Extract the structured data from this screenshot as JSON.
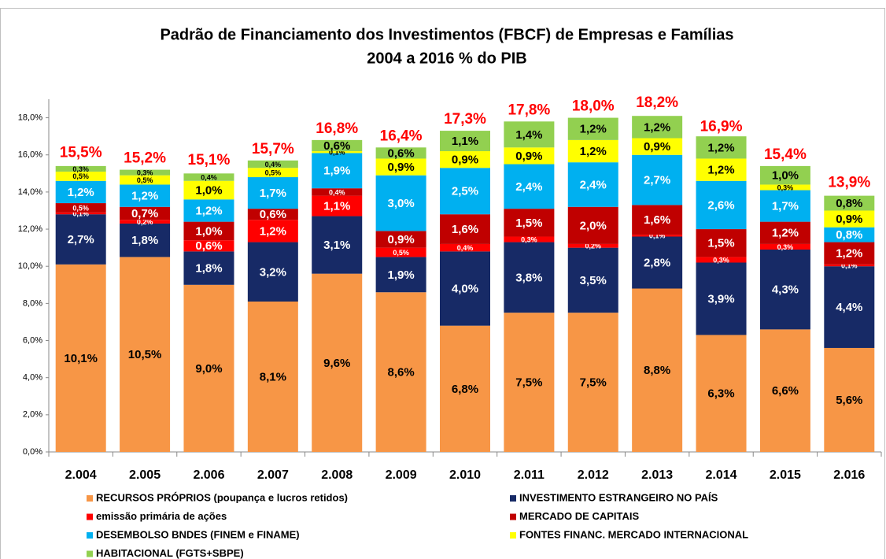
{
  "chart_data": {
    "type": "stacked_bar",
    "title": "Padrão de Financiamento dos Investimentos  (FBCF) de Empresas e Famílias",
    "subtitle": "2004 a 2016  % do PIB",
    "categories": [
      "2.004",
      "2.005",
      "2.006",
      "2.007",
      "2.008",
      "2.009",
      "2.010",
      "2.011",
      "2.012",
      "2.013",
      "2.014",
      "2.015",
      "2.016"
    ],
    "series": [
      {
        "name": "RECURSOS PRÓPRIOS (poupança e lucros retidos)",
        "color": "#f79646",
        "values": [
          10.1,
          10.5,
          9.0,
          8.1,
          9.6,
          8.6,
          6.8,
          7.5,
          7.5,
          8.8,
          6.3,
          6.6,
          5.6
        ],
        "value_labels": [
          "10,1%",
          "10,5%",
          "9,0%",
          "8,1%",
          "9,6%",
          "8,6%",
          "6,8%",
          "7,5%",
          "7,5%",
          "8,8%",
          "6,3%",
          "6,6%",
          "5,6%"
        ]
      },
      {
        "name": "INVESTIMENTO ESTRANGEIRO NO PAÍS",
        "color": "#172a66",
        "values": [
          2.7,
          1.8,
          1.8,
          3.2,
          3.1,
          1.9,
          4.0,
          3.8,
          3.5,
          2.8,
          3.9,
          4.3,
          4.4
        ],
        "value_labels": [
          "2,7%",
          "1,8%",
          "1,8%",
          "3,2%",
          "3,1%",
          "1,9%",
          "4,0%",
          "3,8%",
          "3,5%",
          "2,8%",
          "3,9%",
          "4,3%",
          "4,4%"
        ]
      },
      {
        "name": "emissão primária de ações",
        "color": "#ff0000",
        "values": [
          0.1,
          0.2,
          0.6,
          1.2,
          1.1,
          0.5,
          0.4,
          0.3,
          0.2,
          0.1,
          0.3,
          0.3,
          0.1
        ],
        "value_labels": [
          "0,1%",
          "0,2%",
          "0,6%",
          "1,2%",
          "1,1%",
          "0,5%",
          "0,4%",
          "0,3%",
          "0,2%",
          "0,1%",
          "0,3%",
          "0,3%",
          "0,1%"
        ]
      },
      {
        "name": "MERCADO DE CAPITAIS",
        "color": "#c00000",
        "values": [
          0.5,
          0.7,
          1.0,
          0.6,
          0.4,
          0.9,
          1.6,
          1.5,
          2.0,
          1.6,
          1.5,
          1.2,
          1.2
        ],
        "value_labels": [
          "0,5%",
          "0,7%",
          "1,0%",
          "0,6%",
          "0,4%",
          "0,9%",
          "1,6%",
          "1,5%",
          "2,0%",
          "1,6%",
          "1,5%",
          "1,2%",
          "1,2%"
        ]
      },
      {
        "name": "DESEMBOLSO BNDES (FINEM e FINAME)",
        "color": "#00b0f0",
        "values": [
          1.2,
          1.2,
          1.2,
          1.7,
          1.9,
          3.0,
          2.5,
          2.4,
          2.4,
          2.7,
          2.6,
          1.7,
          0.8
        ],
        "value_labels": [
          "1,2%",
          "1,2%",
          "1,2%",
          "1,7%",
          "1,9%",
          "3,0%",
          "2,5%",
          "2,4%",
          "2,4%",
          "2,7%",
          "2,6%",
          "1,7%",
          "0,8%"
        ]
      },
      {
        "name": "FONTES FINANC. MERCADO INTERNACIONAL",
        "color": "#ffff00",
        "values": [
          0.5,
          0.5,
          1.0,
          0.5,
          0.1,
          0.9,
          0.9,
          0.9,
          1.2,
          0.9,
          1.2,
          0.3,
          0.9
        ],
        "value_labels": [
          "0,5%",
          "0,5%",
          "1,0%",
          "0,5%",
          "0,1%",
          "0,9%",
          "0,9%",
          "0,9%",
          "1,2%",
          "0,9%",
          "1,2%",
          "0,3%",
          "0,9%"
        ]
      },
      {
        "name": "HABITACIONAL (FGTS+SBPE)",
        "color": "#92d050",
        "values": [
          0.3,
          0.3,
          0.4,
          0.4,
          0.6,
          0.6,
          1.1,
          1.4,
          1.2,
          1.2,
          1.2,
          1.0,
          0.8
        ],
        "value_labels": [
          "0,3%",
          "0,3%",
          "0,4%",
          "0,4%",
          "0,6%",
          "0,6%",
          "1,1%",
          "1,4%",
          "1,2%",
          "1,2%",
          "1,2%",
          "1,0%",
          "0,8%"
        ]
      }
    ],
    "totals": [
      15.5,
      15.2,
      15.1,
      15.7,
      16.8,
      16.4,
      17.3,
      17.8,
      18.0,
      18.2,
      16.9,
      15.4,
      13.9
    ],
    "total_labels": [
      "15,5%",
      "15,2%",
      "15,1%",
      "15,7%",
      "16,8%",
      "16,4%",
      "17,3%",
      "17,8%",
      "18,0%",
      "18,2%",
      "16,9%",
      "15,4%",
      "13,9%"
    ],
    "ylim": [
      0,
      19
    ],
    "yticks": [
      {
        "value": 0,
        "label": "0,0%"
      },
      {
        "value": 2,
        "label": "2,0%"
      },
      {
        "value": 4,
        "label": "4,0%"
      },
      {
        "value": 6,
        "label": "6,0%"
      },
      {
        "value": 8,
        "label": "8,0%"
      },
      {
        "value": 10,
        "label": "10,0%"
      },
      {
        "value": 12,
        "label": "12,0%"
      },
      {
        "value": 14,
        "label": "14,0%"
      },
      {
        "value": 16,
        "label": "16,0%"
      },
      {
        "value": 18,
        "label": "18,0%"
      }
    ]
  }
}
